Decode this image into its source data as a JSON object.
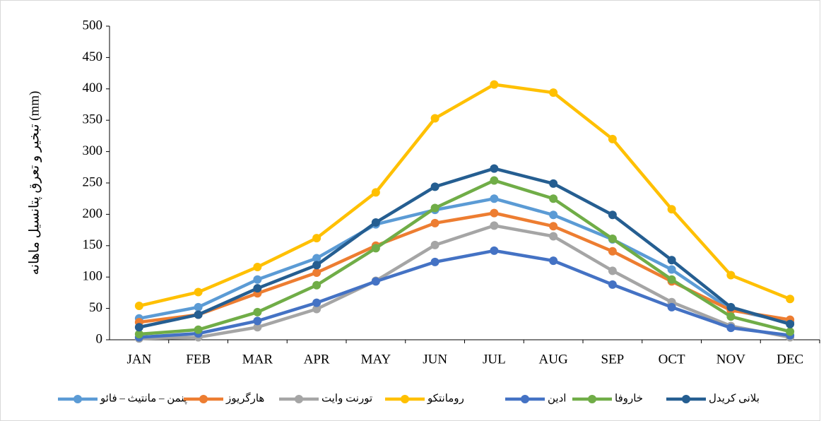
{
  "chart_data": {
    "type": "line",
    "y_label": "تبخیر و تعرق پتانسیل ماهانه (mm)",
    "categories": [
      "JAN",
      "FEB",
      "MAR",
      "APR",
      "MAY",
      "JUN",
      "JUL",
      "AUG",
      "SEP",
      "OCT",
      "NOV",
      "DEC"
    ],
    "ylim": [
      0,
      500
    ],
    "yticks": [
      0,
      50,
      100,
      150,
      200,
      250,
      300,
      350,
      400,
      450,
      500
    ],
    "legend": "bottom",
    "series": [
      {
        "name": "پنمن – مانتیث – فائو",
        "color": "#5b9bd5",
        "values": [
          34,
          52,
          96,
          130,
          184,
          207,
          225,
          199,
          160,
          112,
          48,
          28
        ]
      },
      {
        "name": "هارگریوز",
        "color": "#ed7d31",
        "values": [
          28,
          40,
          74,
          107,
          150,
          186,
          202,
          181,
          141,
          93,
          47,
          32
        ]
      },
      {
        "name": "تورنت وایت",
        "color": "#a5a5a5",
        "values": [
          2,
          4,
          20,
          49,
          94,
          151,
          182,
          165,
          110,
          60,
          22,
          4
        ]
      },
      {
        "name": "رومانتکو",
        "color": "#ffc000",
        "values": [
          54,
          76,
          116,
          162,
          235,
          353,
          407,
          394,
          320,
          208,
          103,
          65
        ]
      },
      {
        "name": "ادین",
        "color": "#4472c4",
        "values": [
          4,
          10,
          30,
          59,
          93,
          124,
          142,
          126,
          88,
          52,
          19,
          7
        ]
      },
      {
        "name": "خاروفا",
        "color": "#70ad47",
        "values": [
          9,
          16,
          44,
          87,
          146,
          210,
          254,
          225,
          161,
          96,
          37,
          13
        ]
      },
      {
        "name": "بلانی کریدل",
        "color": "#255e91",
        "values": [
          20,
          40,
          82,
          119,
          187,
          244,
          273,
          249,
          199,
          127,
          52,
          25
        ]
      }
    ]
  }
}
